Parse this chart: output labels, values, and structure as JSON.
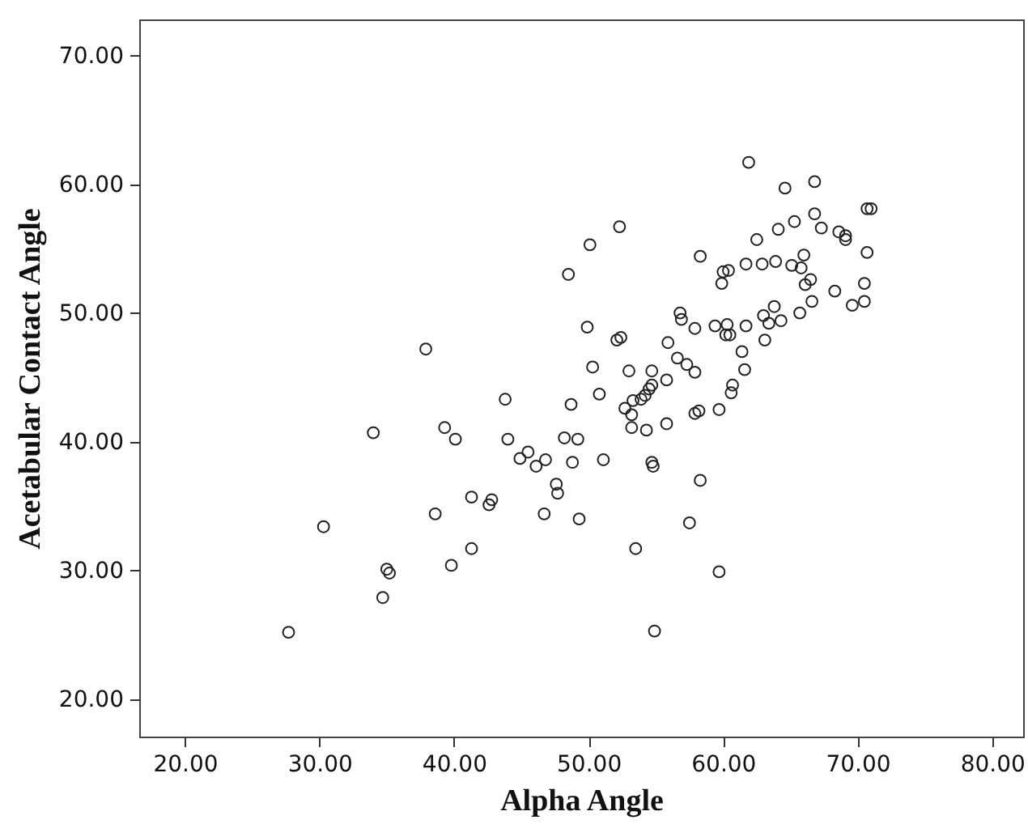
{
  "chart_data": {
    "type": "scatter",
    "xlabel": "Alpha Angle",
    "ylabel": "Acetabular Contact Angle",
    "marker": "circle",
    "xlim": [
      16.6,
      82.3
    ],
    "ylim": [
      17.1,
      72.8
    ],
    "xticks": [
      {
        "value": 20,
        "label": "20.00"
      },
      {
        "value": 30,
        "label": "30.00"
      },
      {
        "value": 40,
        "label": "40.00"
      },
      {
        "value": 50,
        "label": "50.00"
      },
      {
        "value": 60,
        "label": "60.00"
      },
      {
        "value": 70,
        "label": "70.00"
      },
      {
        "value": 80,
        "label": "80.00"
      }
    ],
    "yticks": [
      {
        "value": 20,
        "label": "20.00"
      },
      {
        "value": 30,
        "label": "30.00"
      },
      {
        "value": 40,
        "label": "40.00"
      },
      {
        "value": 50,
        "label": "50.00"
      },
      {
        "value": 60,
        "label": "60.00"
      },
      {
        "value": 70,
        "label": "70.00"
      }
    ],
    "series": [
      {
        "color": "#222222",
        "x": [
          27.7,
          30.3,
          34.7,
          35.0,
          35.2,
          34.0,
          37.9,
          38.6,
          39.8,
          41.3,
          41.3,
          39.3,
          40.1,
          42.6,
          42.8,
          43.8,
          44.0,
          44.9,
          45.5,
          46.1,
          46.8,
          46.7,
          47.6,
          47.7,
          48.2,
          49.2,
          48.8,
          49.3,
          48.7,
          50.3,
          50.8,
          49.9,
          50.1,
          58.3,
          59.9,
          60.0,
          60.4,
          61.7,
          62.9,
          63.9,
          65.1,
          65.8,
          66.0,
          66.1,
          66.5,
          66.6,
          65.7,
          68.3,
          63.8,
          63.0,
          63.4,
          64.3,
          63.1,
          61.7,
          60.3,
          59.4,
          60.2,
          60.5,
          61.4,
          61.6,
          60.7,
          60.6,
          59.7,
          57.9,
          56.8,
          56.9,
          55.9,
          56.6,
          57.3,
          57.9,
          55.8,
          58.2,
          57.9,
          55.8,
          54.3,
          53.2,
          53.2,
          52.7,
          53.3,
          53.9,
          54.2,
          54.5,
          54.7,
          54.7,
          53.0,
          52.1,
          52.4,
          51.1,
          54.7,
          54.8,
          58.3,
          66.8,
          66.8,
          67.3,
          68.6,
          69.1,
          69.1,
          70.7,
          71.0,
          70.7,
          70.5,
          70.5,
          69.6,
          57.5,
          53.5,
          59.7,
          54.9,
          61.9,
          64.6,
          48.5,
          52.3,
          64.1,
          65.3,
          62.5
        ],
        "values": [
          25.2,
          33.4,
          27.9,
          30.1,
          29.8,
          40.7,
          47.2,
          34.4,
          30.4,
          31.7,
          35.7,
          41.1,
          40.2,
          35.1,
          35.5,
          43.3,
          40.2,
          38.7,
          39.2,
          38.1,
          38.6,
          34.4,
          36.7,
          36.0,
          40.3,
          40.2,
          38.4,
          34.0,
          42.9,
          45.8,
          43.7,
          48.9,
          55.3,
          54.4,
          52.3,
          53.2,
          53.3,
          53.8,
          53.8,
          54.0,
          53.7,
          53.5,
          54.5,
          52.2,
          52.6,
          50.9,
          50.0,
          51.7,
          50.5,
          49.8,
          49.2,
          49.4,
          47.9,
          49.0,
          49.1,
          49.0,
          48.3,
          48.3,
          47.0,
          45.6,
          44.4,
          43.8,
          42.5,
          48.8,
          50.0,
          49.5,
          47.7,
          46.5,
          46.0,
          45.4,
          44.8,
          42.4,
          42.2,
          41.4,
          40.9,
          41.1,
          42.1,
          42.6,
          43.2,
          43.3,
          43.6,
          44.1,
          44.4,
          45.5,
          45.5,
          47.9,
          48.1,
          38.6,
          38.4,
          38.1,
          37.0,
          60.2,
          57.7,
          56.6,
          56.3,
          56.0,
          55.7,
          58.1,
          58.1,
          54.7,
          52.3,
          50.9,
          50.6,
          33.7,
          31.7,
          29.9,
          25.3,
          61.7,
          59.7,
          53.0,
          56.7,
          56.5,
          57.1,
          55.7
        ]
      }
    ]
  }
}
